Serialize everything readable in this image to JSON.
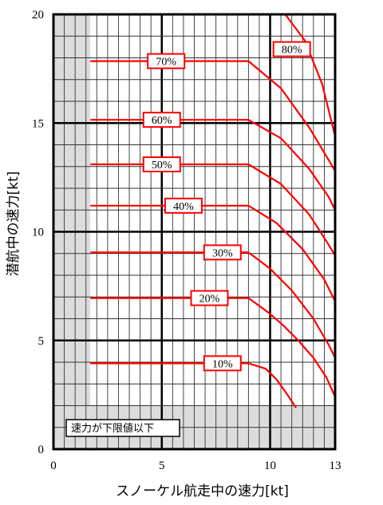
{
  "chart_data": {
    "type": "line",
    "title": "",
    "xlabel": "スノーケル航走中の速力[kt]",
    "ylabel": "潜航中の速力[kt]",
    "xlim": [
      0,
      13
    ],
    "ylim": [
      0,
      20
    ],
    "x_ticks": [
      0,
      5,
      10,
      13
    ],
    "y_ticks": [
      0,
      5,
      10,
      15,
      20
    ],
    "grid": true,
    "shaded_region_label": "速力が下限値以下",
    "shaded_region": {
      "x_max": 1.7,
      "y_max": 2.0
    },
    "line_color": "#ff0000",
    "shade_color": "#dcdcdc",
    "series": [
      {
        "name": "10%",
        "label_at_x": 7.8,
        "points": [
          [
            1.7,
            3.95
          ],
          [
            9.0,
            3.95
          ],
          [
            9.8,
            3.7
          ],
          [
            10.3,
            3.2
          ],
          [
            10.8,
            2.5
          ],
          [
            11.2,
            1.9
          ]
        ]
      },
      {
        "name": "20%",
        "label_at_x": 7.2,
        "points": [
          [
            1.7,
            6.95
          ],
          [
            9.0,
            6.95
          ],
          [
            9.9,
            6.3
          ],
          [
            10.6,
            5.7
          ],
          [
            11.3,
            5.0
          ],
          [
            12.0,
            4.2
          ],
          [
            12.6,
            3.3
          ],
          [
            13.0,
            2.4
          ]
        ]
      },
      {
        "name": "30%",
        "label_at_x": 7.8,
        "points": [
          [
            1.7,
            9.05
          ],
          [
            9.0,
            9.05
          ],
          [
            10.0,
            8.3
          ],
          [
            11.0,
            7.3
          ],
          [
            12.0,
            6.0
          ],
          [
            12.7,
            4.8
          ],
          [
            13.0,
            4.2
          ]
        ]
      },
      {
        "name": "40%",
        "label_at_x": 6.0,
        "points": [
          [
            1.7,
            11.2
          ],
          [
            9.0,
            11.2
          ],
          [
            10.3,
            10.4
          ],
          [
            11.5,
            9.2
          ],
          [
            12.5,
            7.8
          ],
          [
            13.0,
            6.8
          ]
        ]
      },
      {
        "name": "50%",
        "label_at_x": 5.0,
        "points": [
          [
            1.7,
            13.1
          ],
          [
            9.0,
            13.1
          ],
          [
            10.5,
            12.2
          ],
          [
            11.8,
            10.8
          ],
          [
            12.7,
            9.4
          ],
          [
            13.0,
            8.9
          ]
        ]
      },
      {
        "name": "60%",
        "label_at_x": 5.0,
        "points": [
          [
            1.7,
            15.15
          ],
          [
            9.0,
            15.15
          ],
          [
            10.5,
            14.3
          ],
          [
            11.8,
            12.9
          ],
          [
            12.7,
            11.6
          ],
          [
            13.0,
            11.0
          ]
        ]
      },
      {
        "name": "70%",
        "label_at_x": 5.2,
        "points": [
          [
            1.7,
            17.85
          ],
          [
            9.0,
            17.85
          ],
          [
            10.5,
            16.6
          ],
          [
            11.8,
            14.8
          ],
          [
            12.7,
            13.3
          ],
          [
            13.0,
            12.8
          ]
        ]
      },
      {
        "name": "80%",
        "label_at_x": 11.0,
        "label_at_y": 18.4,
        "points": [
          [
            10.7,
            20.0
          ],
          [
            11.6,
            18.8
          ],
          [
            12.4,
            16.8
          ],
          [
            13.0,
            14.4
          ]
        ]
      }
    ]
  }
}
